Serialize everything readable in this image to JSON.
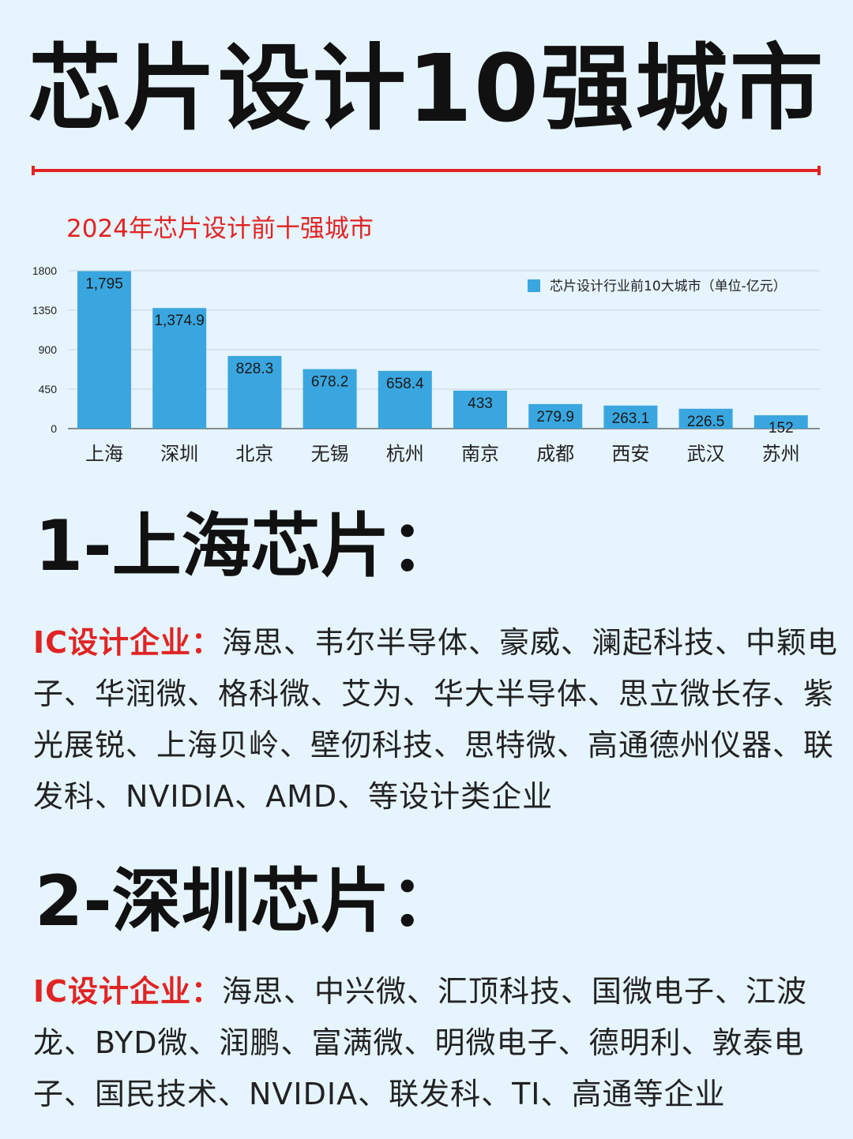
{
  "page": {
    "title": "芯片设计10强城市"
  },
  "colors": {
    "accent": "#e02424",
    "bar": "#3aa6e0",
    "background": "#e6f4fd"
  },
  "chart_data": {
    "type": "bar",
    "title": "2024年芯片设计前十强城市",
    "categories": [
      "上海",
      "深圳",
      "北京",
      "无锡",
      "杭州",
      "南京",
      "成都",
      "西安",
      "武汉",
      "苏州"
    ],
    "series": [
      {
        "name": "芯片设计行业前10大城市（单位-亿元）",
        "values": [
          1795,
          1374.9,
          828.3,
          678.2,
          658.4,
          433,
          279.9,
          263.1,
          226.5,
          152
        ],
        "labels": [
          "1,795",
          "1,374.9",
          "828.3",
          "678.2",
          "658.4",
          "433",
          "279.9",
          "263.1",
          "226.5",
          "152"
        ]
      }
    ],
    "yticks": [
      "0",
      "450",
      "900",
      "1350",
      "1800"
    ],
    "ylim": [
      0,
      1800
    ],
    "grid": true,
    "legend": "top-right"
  },
  "sections": [
    {
      "heading": "1-上海芯片：",
      "label": "IC设计企业：",
      "text": "海思、韦尔半导体、豪威、澜起科技、中颖电子、华润微、格科微、艾为、华大半导体、思立微长存、紫光展锐、上海贝岭、壁仞科技、思特微、高通德州仪器、联发科、NVIDIA、AMD、等设计类企业"
    },
    {
      "heading": "2-深圳芯片：",
      "label": "IC设计企业：",
      "text": "海思、中兴微、汇顶科技、国微电子、江波龙、BYD微、润鹏、富满微、明微电子、德明利、敦泰电子、国民技术、NVIDIA、联发科、TI、高通等企业"
    }
  ]
}
